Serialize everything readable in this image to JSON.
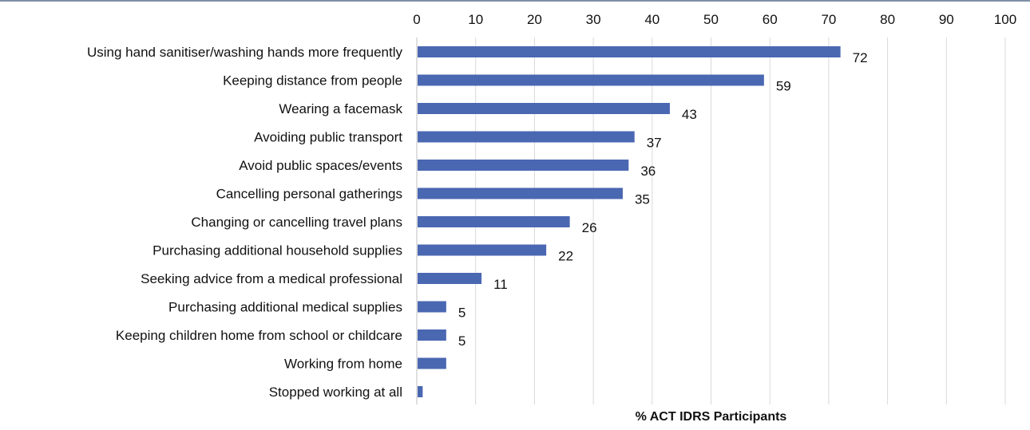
{
  "chart_data": {
    "type": "bar",
    "orientation": "horizontal",
    "categories": [
      "Using hand sanitiser/washing hands more frequently",
      "Keeping distance from people",
      "Wearing a facemask",
      "Avoiding public transport",
      "Avoid public spaces/events",
      "Cancelling personal gatherings",
      "Changing or cancelling travel plans",
      "Purchasing additional household supplies",
      "Seeking advice from a medical professional",
      "Purchasing additional medical supplies",
      "Keeping children home from school or childcare",
      "Working from home",
      "Stopped working at all"
    ],
    "values": [
      72,
      59,
      43,
      37,
      36,
      35,
      26,
      22,
      11,
      5,
      5,
      5,
      1
    ],
    "data_labels": [
      "72",
      "59",
      "43",
      "37",
      "36",
      "35",
      "26",
      "22",
      "11",
      "5",
      "5",
      "",
      ""
    ],
    "xlabel": "% ACT IDRS Participants",
    "xlim": [
      0,
      100
    ],
    "xticks": [
      0,
      10,
      20,
      30,
      40,
      50,
      60,
      70,
      80,
      90,
      100
    ],
    "x_axis_position": "top",
    "grid": true,
    "bar_color": "#4a67b2",
    "grid_color": "#d9d9d9"
  }
}
